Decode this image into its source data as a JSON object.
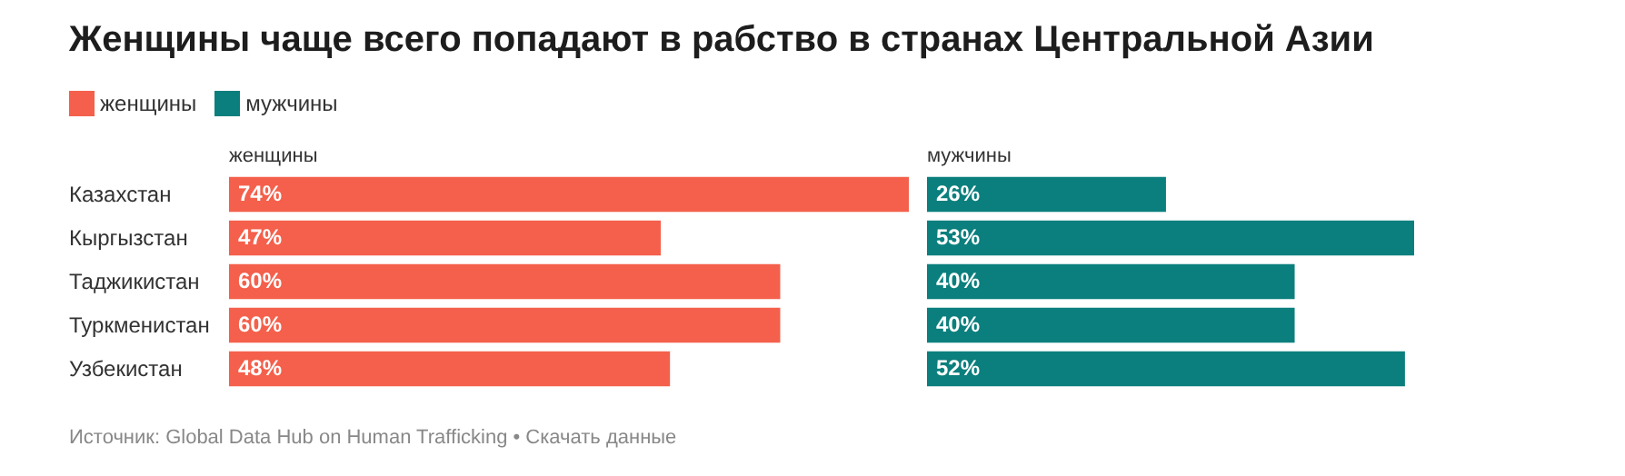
{
  "chart_data": [
    {
      "type": "bar",
      "orientation": "horizontal",
      "title": "Женщины чаще всего попадают в рабство в странах Центральной Азии",
      "categories": [
        "Казахстан",
        "Кыргызстан",
        "Таджикистан",
        "Туркменистан",
        "Узбекистан"
      ],
      "series": [
        {
          "name": "женщины",
          "color": "#f4604b",
          "values": [
            74,
            47,
            60,
            60,
            48
          ],
          "value_labels": [
            "74%",
            "47%",
            "60%",
            "60%",
            "48%"
          ]
        }
      ],
      "xlim": [
        0,
        74
      ],
      "tick_labels": "y",
      "legend": "top left",
      "annotations": [
        "Источник: Global Data Hub on Human Trafficking • Скачать данные"
      ]
    },
    {
      "type": "bar",
      "orientation": "horizontal",
      "categories": [
        null,
        null,
        null,
        null,
        null
      ],
      "series": [
        {
          "name": "мужчины",
          "color": "#0b7f7d",
          "values": [
            26,
            53,
            40,
            40,
            52
          ],
          "value_labels": [
            "26%",
            "53%",
            "40%",
            "40%",
            "52%"
          ]
        }
      ],
      "tick_labels": false,
      "legend": "top left"
    }
  ]
}
